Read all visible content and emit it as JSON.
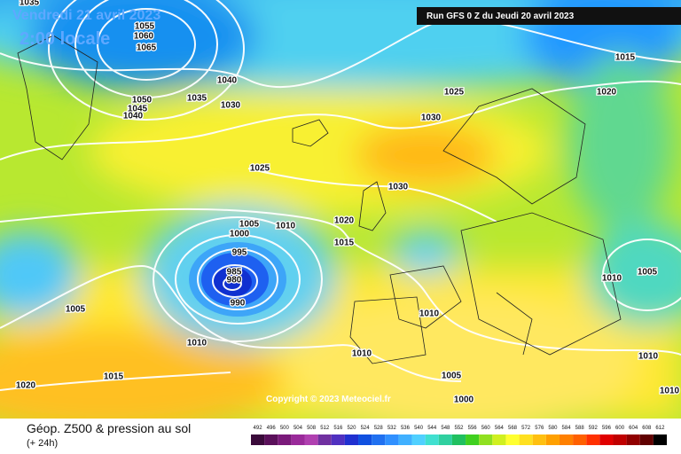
{
  "header": {
    "valid": "Vendredi 21 avril 2023",
    "local_time": "2:00 locale",
    "run": "Run GFS 0 Z du Jeudi 20 avril 2023"
  },
  "isobar_labels": [
    1035,
    1055,
    1060,
    1065,
    1040,
    1050,
    1045,
    1040,
    1035,
    1030,
    1025,
    1030,
    1015,
    1020,
    1025,
    1030,
    1005,
    1010,
    1000,
    1020,
    1015,
    995,
    985,
    980,
    990,
    1005,
    1010,
    1005,
    1010,
    1010,
    1010,
    1010,
    1015,
    1020,
    1005,
    1000,
    1010
  ],
  "copyright": "Copyright © 2023 Meteociel.fr",
  "footer": {
    "title": "Géop. Z500 & pression au sol",
    "lead": "(+ 24h)"
  },
  "legend": {
    "values": [
      492,
      496,
      500,
      504,
      508,
      512,
      516,
      520,
      524,
      528,
      532,
      536,
      540,
      544,
      548,
      552,
      556,
      560,
      564,
      568,
      572,
      576,
      580,
      584,
      588,
      592,
      596,
      600,
      604,
      608,
      612
    ],
    "colors": [
      "#3a0a3a",
      "#5a105a",
      "#7a1a7a",
      "#9a2a9a",
      "#b040b0",
      "#7030a0",
      "#5030c0",
      "#2030d0",
      "#1050e0",
      "#2070f0",
      "#3090ff",
      "#40b0ff",
      "#50d0ff",
      "#40e0d0",
      "#30d0a0",
      "#20c060",
      "#40d020",
      "#90e020",
      "#d0f020",
      "#ffff30",
      "#ffe020",
      "#ffc010",
      "#ffa000",
      "#ff8000",
      "#ff6000",
      "#ff3000",
      "#e00000",
      "#c00000",
      "#900000",
      "#600000",
      "#000000"
    ]
  }
}
